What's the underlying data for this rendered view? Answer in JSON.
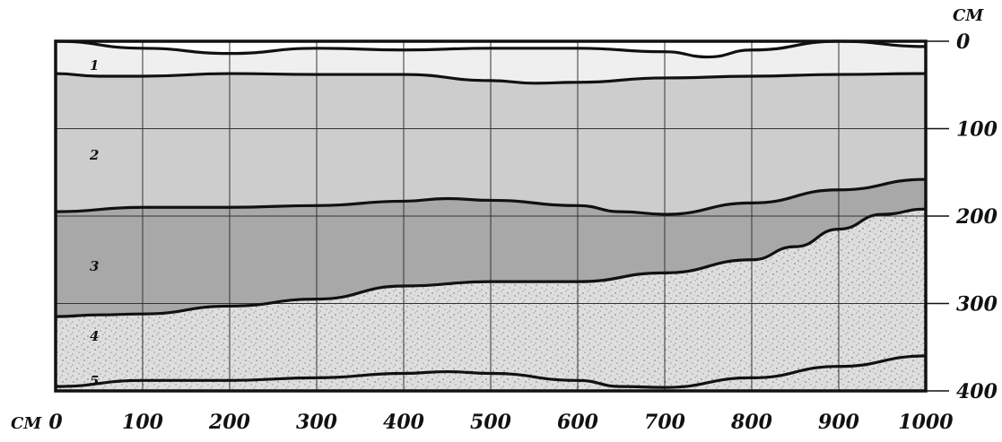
{
  "axes": {
    "x_unit": "СМ",
    "y_unit": "СМ",
    "x_ticks": [
      "0",
      "100",
      "200",
      "300",
      "400",
      "500",
      "600",
      "700",
      "800",
      "900",
      "1000"
    ],
    "y_ticks": [
      "0",
      "100",
      "200",
      "300",
      "400"
    ],
    "x_range": [
      0,
      1000
    ],
    "y_range": [
      0,
      400
    ]
  },
  "layers": [
    {
      "label": "1",
      "fill": "#efefef"
    },
    {
      "label": "2",
      "fill": "#cfcfcf"
    },
    {
      "label": "3",
      "fill": "#a9a9a9"
    },
    {
      "label": "4",
      "fill": "#dcdcdc"
    },
    {
      "label": "5",
      "fill": "#d3d3d3"
    }
  ],
  "boundaries": [
    {
      "x": [
        0,
        100,
        200,
        300,
        400,
        500,
        600,
        700,
        750,
        800,
        900,
        1000
      ],
      "depth": [
        0,
        8,
        14,
        8,
        10,
        8,
        8,
        12,
        18,
        10,
        0,
        6
      ]
    },
    {
      "x": [
        0,
        50,
        100,
        200,
        300,
        400,
        500,
        550,
        600,
        700,
        800,
        900,
        1000
      ],
      "depth": [
        37,
        40,
        40,
        37,
        38,
        38,
        45,
        48,
        47,
        42,
        40,
        38,
        37
      ]
    },
    {
      "x": [
        0,
        100,
        200,
        300,
        400,
        450,
        500,
        600,
        650,
        700,
        800,
        900,
        1000
      ],
      "depth": [
        195,
        190,
        190,
        188,
        183,
        180,
        182,
        188,
        195,
        198,
        185,
        170,
        158
      ]
    },
    {
      "x": [
        0,
        50,
        100,
        200,
        300,
        400,
        500,
        600,
        700,
        800,
        850,
        900,
        950,
        1000
      ],
      "depth": [
        315,
        313,
        312,
        303,
        295,
        280,
        275,
        275,
        265,
        250,
        235,
        215,
        198,
        192
      ]
    },
    {
      "x": [
        0,
        100,
        200,
        300,
        400,
        450,
        500,
        600,
        650,
        700,
        800,
        900,
        1000
      ],
      "depth": [
        395,
        388,
        388,
        385,
        380,
        378,
        380,
        388,
        395,
        396,
        385,
        372,
        360
      ]
    }
  ]
}
